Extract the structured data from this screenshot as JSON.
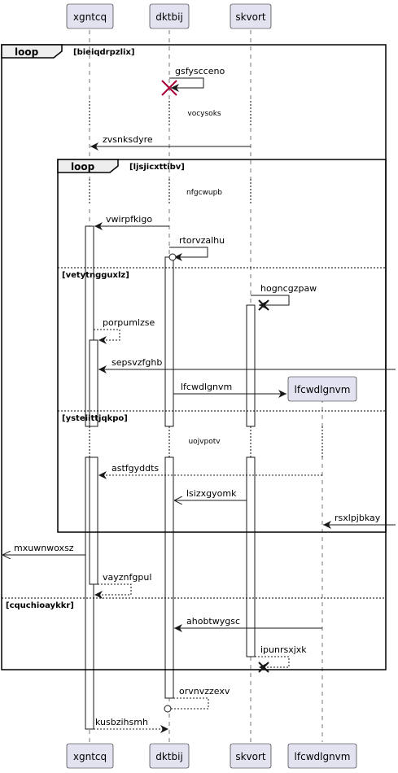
{
  "participants": {
    "xgntcq": "xgntcq",
    "dktbij": "dktbij",
    "skvort": "skvort",
    "lfcwdlgnvm": "lfcwdlgnvm"
  },
  "frames": {
    "outer": {
      "keyword": "loop",
      "guard": "[bieiqdrpzlix]",
      "else_guard": "[cquchioaykkr]"
    },
    "inner": {
      "keyword": "loop",
      "guard": "[ljsjicxttibv]",
      "else_guard_1": "[vetytngguxlz]",
      "else_guard_2": "[ysteiittjqkpo]"
    }
  },
  "delays": {
    "d1": "vocysoks",
    "d2": "nfgcwupb",
    "d3": "uojvpotv"
  },
  "messages": {
    "m1": "gsfyscceno",
    "m2": "zvsnksdyre",
    "m3": "vwirpfkigo",
    "m4": "rtorvzalhu",
    "m5": "hogncgzpaw",
    "m6": "porpumlzse",
    "m7": "sepsvzfghb",
    "m8": "lfcwdlgnvm",
    "m9": "astfgyddts",
    "m10": "lsizxgyomk",
    "m11": "rsxlpjbkay",
    "m12": "mxuwnwoxsz",
    "m13": "vayznfgpul",
    "m14": "ahobtwygsc",
    "m15": "ipunrsxjxk",
    "m16": "orvnvzzexv",
    "m17": "kusbzihsmh"
  }
}
